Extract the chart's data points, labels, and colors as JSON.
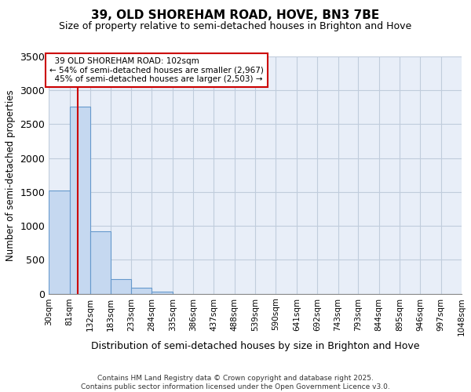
{
  "title": "39, OLD SHOREHAM ROAD, HOVE, BN3 7BE",
  "subtitle": "Size of property relative to semi-detached houses in Brighton and Hove",
  "xlabel": "Distribution of semi-detached houses by size in Brighton and Hove",
  "ylabel": "Number of semi-detached properties",
  "property_address": "39 OLD SHOREHAM ROAD: 102sqm",
  "smaller_pct": "54%",
  "smaller_count": "2,967",
  "larger_pct": "45%",
  "larger_count": "2,503",
  "property_size_sqm": 102,
  "bin_edges": [
    30,
    81,
    132,
    183,
    233,
    284,
    335,
    386,
    437,
    488,
    539,
    590,
    641,
    692,
    743,
    793,
    844,
    895,
    946,
    997,
    1048
  ],
  "bin_counts": [
    1520,
    2760,
    920,
    215,
    85,
    35,
    0,
    0,
    0,
    0,
    0,
    0,
    0,
    0,
    0,
    0,
    0,
    0,
    0,
    0
  ],
  "bar_color": "#c5d8f0",
  "bar_edge_color": "#6699cc",
  "vline_color": "#cc0000",
  "annotation_box_edge_color": "#cc0000",
  "background_color": "#e8eef8",
  "grid_color": "#c0ccdc",
  "footer_text": "Contains HM Land Registry data © Crown copyright and database right 2025.\nContains public sector information licensed under the Open Government Licence v3.0.",
  "ylim": [
    0,
    3500
  ],
  "yticks": [
    0,
    500,
    1000,
    1500,
    2000,
    2500,
    3000,
    3500
  ],
  "tick_labels": [
    "30sqm",
    "81sqm",
    "132sqm",
    "183sqm",
    "233sqm",
    "284sqm",
    "335sqm",
    "386sqm",
    "437sqm",
    "488sqm",
    "539sqm",
    "590sqm",
    "641sqm",
    "692sqm",
    "743sqm",
    "793sqm",
    "844sqm",
    "895sqm",
    "946sqm",
    "997sqm",
    "1048sqm"
  ]
}
